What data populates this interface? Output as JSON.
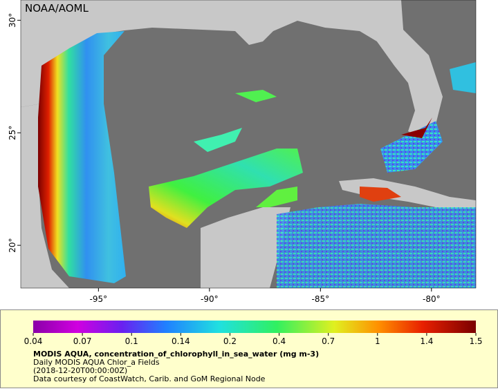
{
  "map": {
    "credit": "NOAA/AOML",
    "lon_lim": [
      -98.5,
      -78
    ],
    "lat_lim": [
      18.1,
      30.9
    ],
    "lon_ticks": [
      {
        "value": -95,
        "label": "-95°"
      },
      {
        "value": -90,
        "label": "-90°"
      },
      {
        "value": -85,
        "label": "-85°"
      },
      {
        "value": -80,
        "label": "-80°"
      }
    ],
    "lat_ticks": [
      {
        "value": 30,
        "label": "30°"
      },
      {
        "value": 25,
        "label": "25°"
      },
      {
        "value": 20,
        "label": "20°"
      }
    ]
  },
  "colorbar": {
    "ticks": [
      0.04,
      0.07,
      0.1,
      0.14,
      0.2,
      0.4,
      0.7,
      1,
      1.4,
      1.5
    ]
  },
  "caption": {
    "title": "MODIS AQUA, concentration_of_chlorophyll_in_sea_water (mg m-3)",
    "lines": [
      "Daily MODIS AQUA Chlor_a Fields",
      "(2018-12-20T00:00:00Z)",
      "Data courtesy of CoastWatch, Carib. and GoM Regional Node"
    ]
  }
}
